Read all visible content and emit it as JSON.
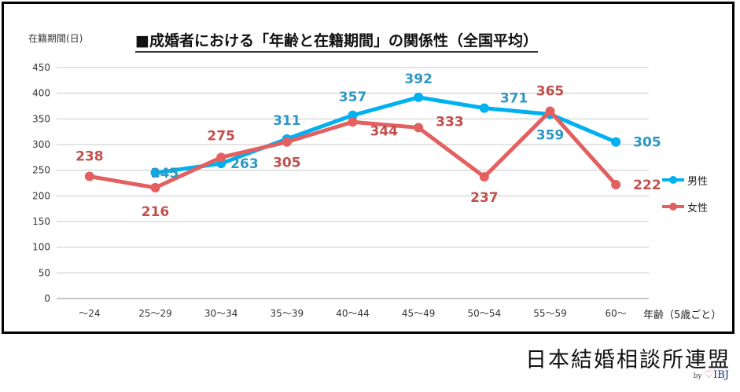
{
  "chart_data": {
    "type": "line",
    "title": "■成婚者における「年齢と在籍期間」の関係性（全国平均）",
    "ylabel": "在籍期間(日)",
    "xlabel": "年齢（5歳ごと）",
    "ylim": [
      0,
      450
    ],
    "yticks": [
      0,
      50,
      100,
      150,
      200,
      250,
      300,
      350,
      400,
      450
    ],
    "grid": true,
    "legend_position": "right",
    "categories": [
      "～24",
      "25～29",
      "30～34",
      "35～39",
      "40～44",
      "45～49",
      "50～54",
      "55～59",
      "60～"
    ],
    "series": [
      {
        "name": "男性",
        "color": "#00b0f0",
        "label_color": "#2e97c4",
        "values": [
          null,
          245,
          263,
          311,
          357,
          392,
          371,
          359,
          305
        ]
      },
      {
        "name": "女性",
        "color": "#e36060",
        "label_color": "#c0504d",
        "values": [
          238,
          216,
          275,
          305,
          344,
          333,
          237,
          365,
          222
        ]
      }
    ]
  },
  "footer": {
    "org_name": "日本結婚相談所連盟",
    "brand_by": "by",
    "brand_heart": "♡",
    "brand_name": "IBJ"
  }
}
